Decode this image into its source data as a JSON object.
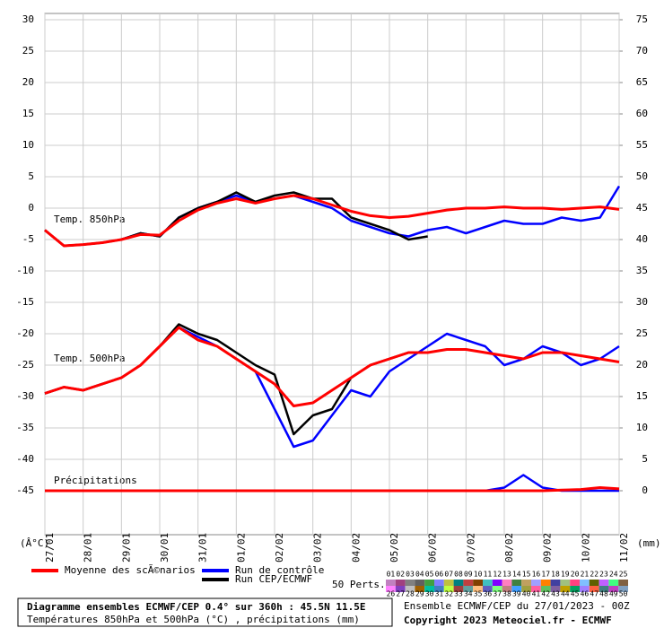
{
  "chart_data": {
    "type": "line",
    "ylim": [
      -52,
      31
    ],
    "yticks": [
      -45,
      -40,
      -35,
      -30,
      -25,
      -20,
      -15,
      -10,
      -5,
      0,
      5,
      10,
      15,
      20,
      25,
      30
    ],
    "y2lim": [
      -7,
      76
    ],
    "y2ticks": [
      0,
      5,
      10,
      15,
      20,
      25,
      30,
      35,
      40,
      45,
      50,
      55,
      60,
      65,
      70,
      75
    ],
    "xlim": [
      0,
      360
    ],
    "xticks": [
      {
        "value": 0,
        "label": "27/01"
      },
      {
        "value": 24,
        "label": "28/01"
      },
      {
        "value": 48,
        "label": "29/01"
      },
      {
        "value": 72,
        "label": "30/01"
      },
      {
        "value": 96,
        "label": "31/01"
      },
      {
        "value": 120,
        "label": "01/02"
      },
      {
        "value": 144,
        "label": "02/02"
      },
      {
        "value": 168,
        "label": "03/02"
      },
      {
        "value": 192,
        "label": "04/02"
      },
      {
        "value": 216,
        "label": "05/02"
      },
      {
        "value": 240,
        "label": "06/02"
      },
      {
        "value": 264,
        "label": "07/02"
      },
      {
        "value": 288,
        "label": "08/02"
      },
      {
        "value": 312,
        "label": "09/02"
      },
      {
        "value": 336,
        "label": "10/02"
      },
      {
        "value": 360,
        "label": "11/02"
      }
    ],
    "grid": true,
    "ylabel": "(Â°C)",
    "y2label": "(mm)",
    "annotations": [
      "Temp. 850hPa",
      "Temp. 500hPa",
      "Précipitations"
    ],
    "x": [
      0,
      12,
      24,
      36,
      48,
      60,
      72,
      84,
      96,
      108,
      120,
      132,
      144,
      156,
      168,
      180,
      192,
      204,
      216,
      228,
      240,
      252,
      264,
      276,
      288,
      300,
      312,
      324,
      336,
      348,
      360
    ],
    "series": [
      {
        "name": "Moyenne des scÃ©narios",
        "color": "#ff0000",
        "t850": [
          -3.5,
          -6,
          -5.8,
          -5.5,
          -5,
          -4.2,
          -4.3,
          -2,
          -0.3,
          0.8,
          1.5,
          0.8,
          1.5,
          2,
          1.5,
          0.5,
          -0.5,
          -1.2,
          -1.5,
          -1.3,
          -0.8,
          -0.3,
          0,
          0,
          0.2,
          0,
          0,
          -0.2,
          0,
          0.2,
          -0.2
        ],
        "t500": [
          -29.5,
          -28.5,
          -29,
          -28,
          -27,
          -25,
          -22,
          -19,
          -21,
          -22,
          -24,
          -26,
          -28,
          -31.5,
          -31,
          -29,
          -27,
          -25,
          -24,
          -23,
          -23,
          -22.5,
          -22.5,
          -23,
          -23.5,
          -24,
          -23,
          -23,
          -23.5,
          -24,
          -24.5
        ],
        "precip": [
          0,
          0,
          0,
          0,
          0,
          0,
          0,
          0,
          0,
          0,
          0,
          0,
          0,
          0,
          0,
          0,
          0,
          0,
          0,
          0,
          0,
          0,
          0,
          0,
          0,
          0,
          0,
          0.1,
          0.2,
          0.5,
          0.3
        ]
      },
      {
        "name": "Run de contrôle",
        "color": "#0000ff",
        "t850": [
          -3.5,
          -6,
          -5.8,
          -5.5,
          -5,
          -4,
          -4.5,
          -1.5,
          0,
          1,
          2,
          1,
          1.5,
          2,
          1,
          0,
          -2,
          -3,
          -4,
          -4.5,
          -3.5,
          -3,
          -4,
          -3,
          -2,
          -2.5,
          -2.5,
          -1.5,
          -2,
          -1.5,
          3.5
        ],
        "t500": [
          -29.5,
          -28.5,
          -29,
          -28,
          -27,
          -25,
          -22,
          -19,
          -20.5,
          -22,
          -24,
          -26,
          -32,
          -38,
          -37,
          -33,
          -29,
          -30,
          -26,
          -24,
          -22,
          -20,
          -21,
          -22,
          -25,
          -24,
          -22,
          -23,
          -25,
          -24,
          -22
        ],
        "precip": [
          0,
          0,
          0,
          0,
          0,
          0,
          0,
          0,
          0,
          0,
          0,
          0,
          0,
          0,
          0,
          0,
          0,
          0,
          0,
          0,
          0,
          0,
          0,
          0,
          0.5,
          2.5,
          0.5,
          0,
          0,
          0,
          0
        ]
      },
      {
        "name": "Run CEP/ECMWF",
        "color": "#000000",
        "t850": [
          -3.5,
          -6,
          -5.8,
          -5.5,
          -5,
          -4,
          -4.5,
          -1.5,
          0,
          1,
          2.5,
          1,
          2,
          2.5,
          1.5,
          1.5,
          -1.5,
          -2.5,
          -3.5,
          -5,
          -4.5,
          null,
          null,
          null,
          null,
          null,
          null,
          null,
          null,
          null,
          null
        ],
        "t500": [
          -29.5,
          -28.5,
          -29,
          -28,
          -27,
          -25,
          -22,
          -18.5,
          -20,
          -21,
          -23,
          -25,
          -26.5,
          -36,
          -33,
          -32,
          -27,
          -25,
          -24,
          -23,
          -23,
          null,
          null,
          null,
          null,
          null,
          null,
          null,
          null,
          null,
          null
        ],
        "precip": [
          0,
          0,
          0,
          0,
          0,
          0,
          0,
          0,
          0,
          0,
          0,
          0,
          0,
          0,
          0,
          0,
          0,
          0,
          0,
          0,
          0,
          null,
          null,
          null,
          null,
          null,
          null,
          null,
          null,
          null,
          null
        ]
      }
    ],
    "perturbations": {
      "label": "50 Perts.",
      "members": [
        "01",
        "02",
        "03",
        "04",
        "05",
        "06",
        "07",
        "08",
        "09",
        "10",
        "11",
        "12",
        "13",
        "14",
        "15",
        "16",
        "17",
        "18",
        "19",
        "20",
        "21",
        "22",
        "23",
        "24",
        "25",
        "26",
        "27",
        "28",
        "29",
        "30",
        "31",
        "32",
        "33",
        "34",
        "35",
        "36",
        "37",
        "38",
        "39",
        "40",
        "41",
        "42",
        "43",
        "44",
        "45",
        "46",
        "47",
        "48",
        "49",
        "50"
      ],
      "colors": [
        "#c080c0",
        "#a04080",
        "#808080",
        "#606060",
        "#40a040",
        "#8080ff",
        "#c0c040",
        "#008080",
        "#c04040",
        "#804000",
        "#40c0c0",
        "#8000ff",
        "#ff80c0",
        "#408040",
        "#c0a060",
        "#a0a0ff",
        "#ff8000",
        "#4040a0",
        "#a0c080",
        "#ff4080",
        "#80c0ff",
        "#606000",
        "#c060ff",
        "#40ff80",
        "#806040",
        "#ff80ff",
        "#8040c0",
        "#c0c0c0",
        "#a06000",
        "#00c0a0",
        "#4080c0",
        "#c0ff40",
        "#a04040",
        "#60a0a0",
        "#ffc080",
        "#6060c0",
        "#80ff80",
        "#c08080",
        "#40a0ff",
        "#a0a040",
        "#ff60a0",
        "#60c060",
        "#8060a0",
        "#c0a000",
        "#00a060",
        "#a080ff",
        "#ff6040",
        "#408080",
        "#c040c0",
        "#80a0c0"
      ]
    },
    "footer": {
      "title": "Diagramme ensembles ECMWF/CEP 0.4° sur 360h : 45.5N 11.5E",
      "subtitle": "Températures 850hPa et 500hPa (°C) , précipitations (mm)",
      "run": "Ensemble ECMWF/CEP du 27/01/2023 - 00Z",
      "copyright": "Copyright 2023 Meteociel.fr - ECMWF"
    }
  }
}
